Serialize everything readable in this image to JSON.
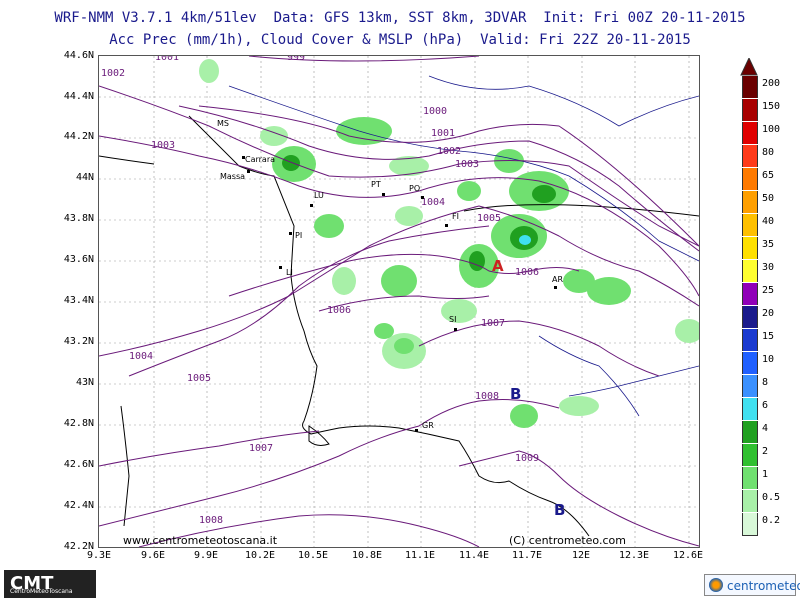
{
  "header": {
    "line1": "WRF-NMM V3.7.1 4km/51lev  Data: GFS 13km, SST 8km, 3DVAR  Init: Fri 00Z 20-11-2015",
    "line2": "Acc Prec (mm/1h), Cloud Cover & MSLP (hPa)  Valid: Fri 22Z 20-11-2015"
  },
  "axes": {
    "lat_labels": [
      "44.6N",
      "44.4N",
      "44.2N",
      "44N",
      "43.8N",
      "43.6N",
      "43.4N",
      "43.2N",
      "43N",
      "42.8N",
      "42.6N",
      "42.4N",
      "42.2N"
    ],
    "lon_labels": [
      "9.3E",
      "9.6E",
      "9.9E",
      "10.2E",
      "10.5E",
      "10.8E",
      "11.1E",
      "11.4E",
      "11.7E",
      "12E",
      "12.3E",
      "12.6E"
    ]
  },
  "isobars": [
    {
      "value": "999"
    },
    {
      "value": "1000"
    },
    {
      "value": "1001"
    },
    {
      "value": "1002"
    },
    {
      "value": "1003"
    },
    {
      "value": "1004"
    },
    {
      "value": "1005"
    },
    {
      "value": "1006"
    },
    {
      "value": "1007"
    },
    {
      "value": "1008"
    },
    {
      "value": "1009"
    }
  ],
  "isobar_labels": [
    {
      "text": "1002"
    },
    {
      "text": "1001"
    },
    {
      "text": "999"
    },
    {
      "text": "1003"
    },
    {
      "text": "1000"
    },
    {
      "text": "1001"
    },
    {
      "text": "1002"
    },
    {
      "text": "1003"
    },
    {
      "text": "1004"
    },
    {
      "text": "1005"
    },
    {
      "text": "1006"
    },
    {
      "text": "1006"
    },
    {
      "text": "1007"
    },
    {
      "text": "1004"
    },
    {
      "text": "1005"
    },
    {
      "text": "1008"
    },
    {
      "text": "1007"
    },
    {
      "text": "1009"
    },
    {
      "text": "1008"
    }
  ],
  "cities": [
    {
      "code": "MS"
    },
    {
      "code": "Carrara"
    },
    {
      "code": "Massa"
    },
    {
      "code": "LU"
    },
    {
      "code": "PT"
    },
    {
      "code": "PO"
    },
    {
      "code": "FI"
    },
    {
      "code": "PI"
    },
    {
      "code": "LI"
    },
    {
      "code": "AR"
    },
    {
      "code": "SI"
    },
    {
      "code": "GR"
    }
  ],
  "pressure_centers": [
    {
      "letter": "A",
      "color": "#cc2222"
    },
    {
      "letter": "B",
      "color": "#1a1a8c"
    },
    {
      "letter": "B",
      "color": "#1a1a8c"
    }
  ],
  "colorbar": {
    "levels": [
      "200",
      "150",
      "100",
      "80",
      "65",
      "50",
      "40",
      "35",
      "30",
      "25",
      "20",
      "15",
      "10",
      "8",
      "6",
      "4",
      "2",
      "1",
      "0.5",
      "0.2"
    ],
    "colors": [
      "#6b0000",
      "#a80000",
      "#e00000",
      "#ff3a1a",
      "#ff7a00",
      "#ff9f00",
      "#ffc000",
      "#ffe000",
      "#ffff30",
      "#9000b8",
      "#1a1a8c",
      "#1a3ad0",
      "#2060ff",
      "#3a90ff",
      "#40e0f0",
      "#20a020",
      "#30c030",
      "#70e070",
      "#a8f0a8",
      "#d8f8d8"
    ]
  },
  "footer": {
    "watermark": "www.centrometeotoscana.it",
    "copyright": "(C) centrometeo.com",
    "logo_left": "CMT",
    "logo_left_sub": "CentroMeteoToscana",
    "logo_right": "centrometeo"
  },
  "colors": {
    "title": "#1a1a8c",
    "isobar": "#6a1a7a",
    "coast": "#000000",
    "border": "#1a1a8c"
  }
}
